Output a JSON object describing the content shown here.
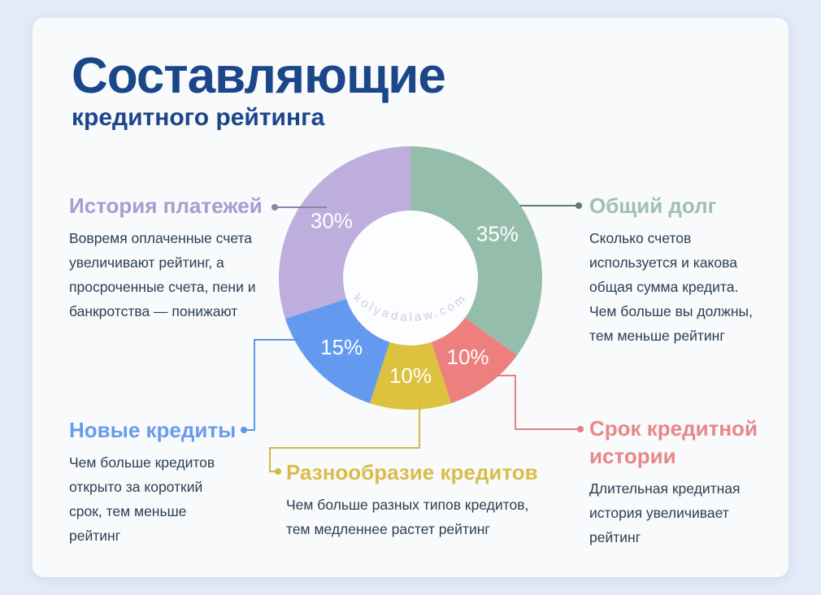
{
  "title": "Составляющие",
  "subtitle": "кредитного рейтинга",
  "watermark": "kolyadalaw.com",
  "colors": {
    "page_background": "#e4ebf8",
    "card_background": "#f8fafc",
    "title": "#1b4689",
    "body_text": "#2c3e52"
  },
  "chart_data": {
    "type": "pie",
    "subtype": "donut",
    "start_angle_deg": 0,
    "direction": "clockwise",
    "label_color": "#ffffff",
    "hole_color": "#fcfdff",
    "segments": [
      {
        "name": "Общий долг",
        "value": 35,
        "label": "35%",
        "color": "#95bdac"
      },
      {
        "name": "Срок кредитной истории",
        "value": 10,
        "label": "10%",
        "color": "#ee7f7f"
      },
      {
        "name": "Разнообразие кредитов",
        "value": 10,
        "label": "10%",
        "color": "#dcc23e"
      },
      {
        "name": "Новые кредиты",
        "value": 15,
        "label": "15%",
        "color": "#639af0"
      },
      {
        "name": "История платежей",
        "value": 30,
        "label": "30%",
        "color": "#bdaede"
      }
    ]
  },
  "sections": {
    "payment_history": {
      "heading": "История платежей",
      "heading_color": "#a79dcf",
      "line_color": "#8b85a5",
      "body_lines": [
        "Вовремя оплаченные счета",
        "увеличивают рейтинг, а",
        "просроченные счета, пени и",
        "банкротства — понижают"
      ]
    },
    "total_debt": {
      "heading": "Общий долг",
      "heading_color": "#9dc0b1",
      "line_color": "#5f7a74",
      "body_lines": [
        "Сколько счетов",
        "используется и какова",
        "общая сумма кредита.",
        "Чем больше вы должны,",
        "тем меньше рейтинг"
      ]
    },
    "new_credits": {
      "heading": "Новые кредиты",
      "heading_color": "#699ceb",
      "line_color": "#5e96e6",
      "body_lines": [
        "Чем больше кредитов",
        "открыто за короткий",
        "срок, тем меньше",
        "рейтинг"
      ]
    },
    "credit_mix": {
      "heading": "Разнообразие кредитов",
      "heading_color": "#d9bd4a",
      "line_color": "#d2b845",
      "body_lines": [
        "Чем больше разных типов кредитов,",
        "тем медленнее растет рейтинг"
      ]
    },
    "history_length": {
      "heading_line1": "Срок кредитной",
      "heading_line2": "истории",
      "heading_color": "#e88787",
      "line_color": "#e87f7f",
      "body_lines": [
        "Длительная кредитная",
        "история увеличивает",
        "рейтинг"
      ]
    }
  }
}
